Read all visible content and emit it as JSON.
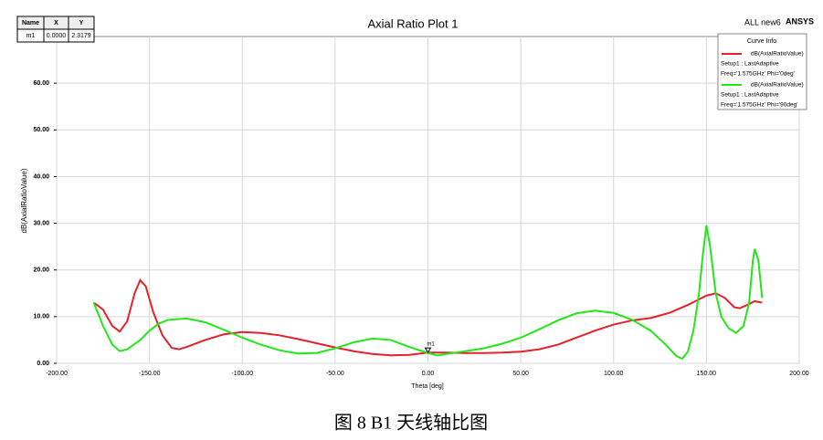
{
  "chart_data": {
    "type": "line",
    "title": "Axial Ratio Plot 1",
    "corner_label": "ALL new6",
    "brand": "ANSYS",
    "x_label": "Theta [deg]",
    "y_label": "dB(AxialRatioValue)",
    "xlim": [
      -200,
      200
    ],
    "ylim": [
      0,
      70
    ],
    "xticks": [
      {
        "value": -200,
        "label": "-200.00"
      },
      {
        "value": -150,
        "label": "-150.00"
      },
      {
        "value": -100,
        "label": "-100.00"
      },
      {
        "value": -50,
        "label": "-50.00"
      },
      {
        "value": 0,
        "label": "0.00"
      },
      {
        "value": 50,
        "label": "50.00"
      },
      {
        "value": 100,
        "label": "100.00"
      },
      {
        "value": 150,
        "label": "150.00"
      },
      {
        "value": 200,
        "label": "200.00"
      }
    ],
    "yticks": [
      {
        "value": 0,
        "label": "0.00"
      },
      {
        "value": 10,
        "label": "10.00"
      },
      {
        "value": 20,
        "label": "20.00"
      },
      {
        "value": 30,
        "label": "30.00"
      },
      {
        "value": 40,
        "label": "40.00"
      },
      {
        "value": 50,
        "label": "50.00"
      },
      {
        "value": 60,
        "label": "60.00"
      }
    ],
    "grid": true,
    "legend_title": "Curve Info",
    "legend_position": "top-right",
    "series": [
      {
        "name": "dB(AxialRatioValue)",
        "setup": "Setup1 : LastAdaptive",
        "params": "Freq='1.575GHz' Phi='0deg'",
        "color": "#e8202a",
        "x": [
          -180,
          -175,
          -170,
          -166,
          -162,
          -158,
          -155,
          -152,
          -148,
          -143,
          -138,
          -134,
          -130,
          -120,
          -110,
          -100,
          -90,
          -80,
          -70,
          -60,
          -50,
          -40,
          -30,
          -20,
          -10,
          0,
          10,
          20,
          30,
          40,
          50,
          60,
          70,
          80,
          90,
          100,
          110,
          120,
          130,
          140,
          150,
          155,
          160,
          165,
          168,
          172,
          176,
          180
        ],
        "values": [
          13,
          11.5,
          8,
          6.8,
          9,
          15,
          17.8,
          16.5,
          11,
          6,
          3.3,
          3,
          3.5,
          5,
          6.2,
          6.7,
          6.5,
          6,
          5.2,
          4.3,
          3.4,
          2.6,
          2,
          1.7,
          1.8,
          2.3,
          2.3,
          2.2,
          2.2,
          2.3,
          2.5,
          3,
          4,
          5.5,
          7,
          8.3,
          9.2,
          9.7,
          10.8,
          12.5,
          14.5,
          15,
          14,
          12,
          11.8,
          12.5,
          13.3,
          13
        ]
      },
      {
        "name": "dB(AxialRatioValue)",
        "setup": "Setup1 : LastAdaptive",
        "params": "Freq='1.575GHz' Phi='90deg'",
        "color": "#22e81a",
        "x": [
          -180,
          -175,
          -170,
          -166,
          -162,
          -155,
          -150,
          -145,
          -140,
          -130,
          -120,
          -110,
          -100,
          -90,
          -80,
          -70,
          -60,
          -50,
          -40,
          -30,
          -20,
          -10,
          0,
          5,
          10,
          20,
          30,
          40,
          50,
          60,
          70,
          80,
          90,
          100,
          110,
          120,
          128,
          134,
          137,
          140,
          143,
          146,
          148,
          150,
          152,
          155,
          158,
          162,
          166,
          170,
          173,
          175,
          176,
          178,
          180
        ],
        "values": [
          13,
          8,
          4,
          2.6,
          3,
          5,
          7,
          8.5,
          9.3,
          9.6,
          8.8,
          7.2,
          5.5,
          4,
          2.8,
          2.1,
          2.2,
          3.2,
          4.5,
          5.3,
          5,
          3.5,
          2.2,
          1.7,
          2,
          2.6,
          3.2,
          4.2,
          5.5,
          7.3,
          9.2,
          10.7,
          11.3,
          10.8,
          9.3,
          7,
          4,
          1.5,
          1,
          2.5,
          7,
          15,
          23,
          29.5,
          25,
          15,
          10,
          7.5,
          6.5,
          8,
          13,
          22,
          24.5,
          22,
          14
        ]
      }
    ],
    "marker": {
      "label": "m1",
      "x": 0,
      "y": 2.3179
    },
    "marker_table": {
      "columns": [
        "Name",
        "X",
        "Y"
      ],
      "rows": [
        [
          "m1",
          "0.0000",
          "2.3179"
        ]
      ]
    }
  },
  "caption": "图 8 B1 天线轴比图"
}
